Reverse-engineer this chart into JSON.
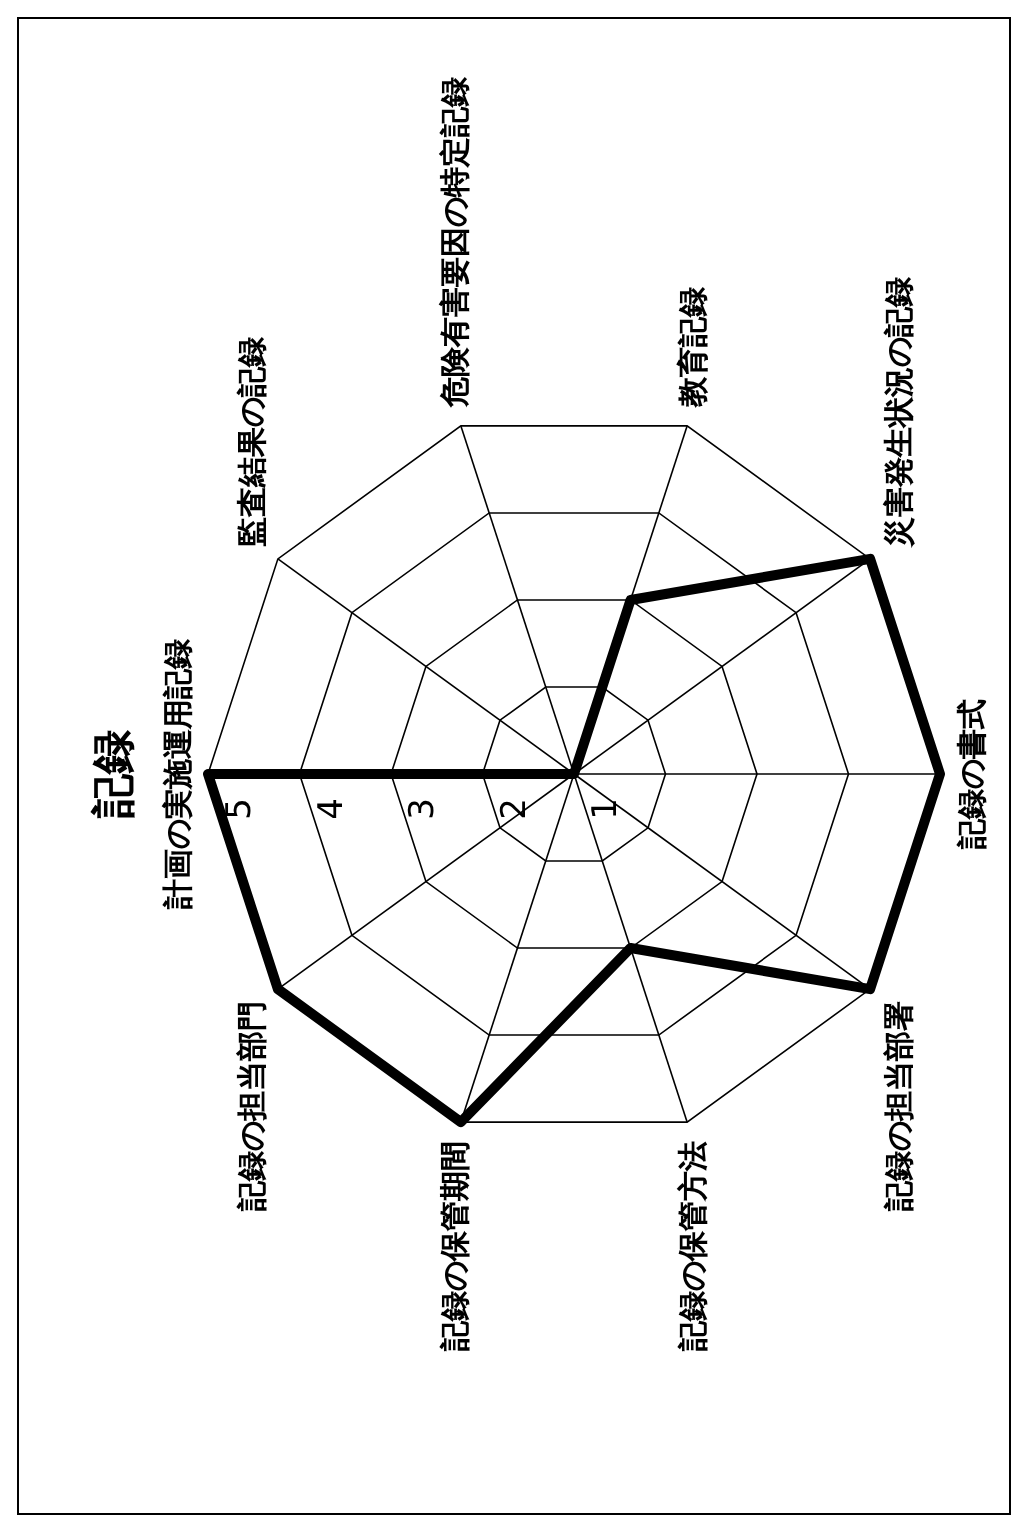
{
  "chart_data": {
    "type": "radar",
    "title": "記録",
    "categories": [
      "計画の実施運用記録",
      "監査結果の記録",
      "危険有害要因の特定記録",
      "教育記録",
      "災害発生状況の記録",
      "記録の書式",
      "記録の担当部署",
      "記録の保管方法",
      "記録の保管期間",
      "記録の担当部門"
    ],
    "series": [
      {
        "color": "#000000",
        "values": [
          5,
          1,
          1,
          3,
          5,
          5,
          5,
          3,
          5,
          5
        ]
      }
    ],
    "ylim": [
      1,
      5
    ],
    "yticks": [
      1,
      2,
      3,
      4,
      5
    ],
    "grid": true
  }
}
